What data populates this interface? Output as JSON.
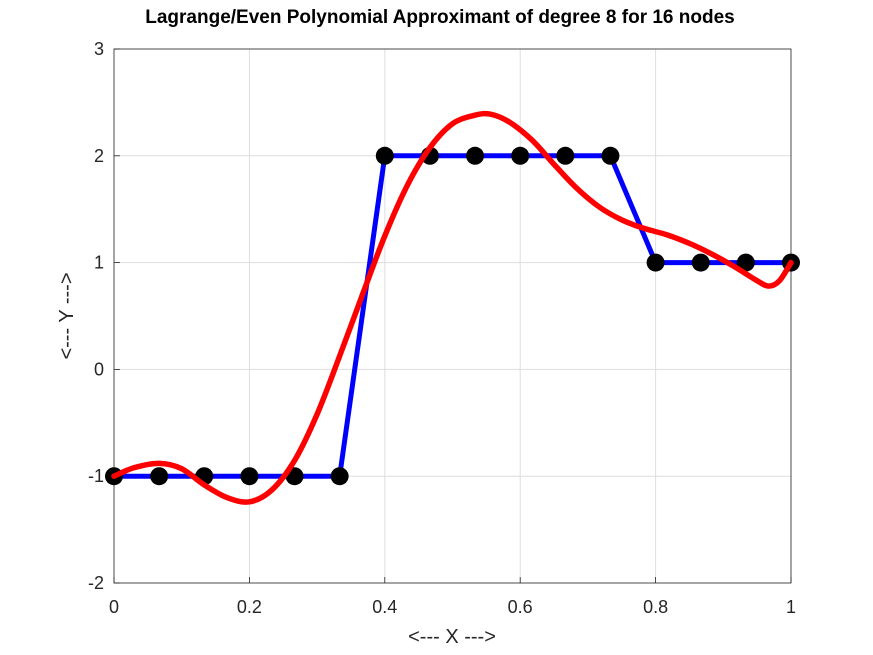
{
  "chart_data": {
    "type": "line",
    "title": "Lagrange/Even Polynomial Approximant of degree 8 for 16 nodes",
    "xlabel": "<--- X --->",
    "ylabel": "<--- Y --->",
    "xlim": [
      0,
      1
    ],
    "ylim": [
      -2,
      3
    ],
    "xticks": [
      0,
      0.2,
      0.4,
      0.6,
      0.8,
      1
    ],
    "xtick_labels": [
      "0",
      "0.2",
      "0.4",
      "0.6",
      "0.8",
      "1"
    ],
    "yticks": [
      -2,
      -1,
      0,
      1,
      2,
      3
    ],
    "ytick_labels": [
      "-2",
      "-1",
      "0",
      "1",
      "2",
      "3"
    ],
    "grid": true,
    "series": [
      {
        "color": "#0000ff",
        "style": "line",
        "x": [
          0,
          0.0667,
          0.1333,
          0.2,
          0.2667,
          0.3333,
          0.4,
          0.4667,
          0.5333,
          0.6,
          0.6667,
          0.7333,
          0.8,
          0.8667,
          0.9333,
          1
        ],
        "y": [
          -1,
          -1,
          -1,
          -1,
          -1,
          -1,
          2,
          2,
          2,
          2,
          2,
          2,
          1,
          1,
          1,
          1
        ]
      },
      {
        "color": "#000000",
        "style": "markers",
        "x": [
          0,
          0.0667,
          0.1333,
          0.2,
          0.2667,
          0.3333,
          0.4,
          0.4667,
          0.5333,
          0.6,
          0.6667,
          0.7333,
          0.8,
          0.8667,
          0.9333,
          1
        ],
        "y": [
          -1,
          -1,
          -1,
          -1,
          -1,
          -1,
          2,
          2,
          2,
          2,
          2,
          2,
          1,
          1,
          1,
          1
        ]
      },
      {
        "color": "#ff0000",
        "style": "curve",
        "x": [
          0,
          0.03,
          0.067,
          0.1,
          0.133,
          0.167,
          0.2,
          0.233,
          0.267,
          0.3,
          0.333,
          0.367,
          0.4,
          0.433,
          0.467,
          0.5,
          0.533,
          0.556,
          0.583,
          0.617,
          0.65,
          0.683,
          0.717,
          0.75,
          0.783,
          0.817,
          0.85,
          0.883,
          0.917,
          0.95,
          0.967,
          0.983,
          1
        ],
        "y": [
          -1,
          -0.92,
          -0.88,
          -0.93,
          -1.08,
          -1.2,
          -1.24,
          -1.13,
          -0.85,
          -0.42,
          0.12,
          0.7,
          1.25,
          1.72,
          2.08,
          2.3,
          2.38,
          2.39,
          2.32,
          2.15,
          1.92,
          1.7,
          1.52,
          1.4,
          1.32,
          1.26,
          1.18,
          1.08,
          0.96,
          0.83,
          0.78,
          0.83,
          1
        ]
      }
    ]
  }
}
